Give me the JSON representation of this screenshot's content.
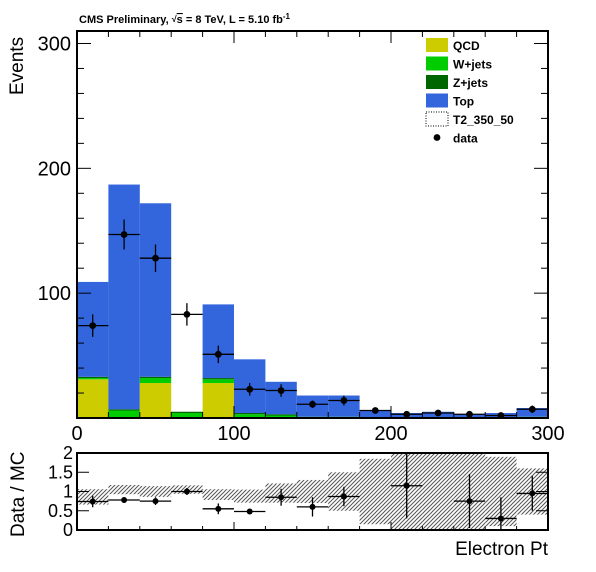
{
  "header": {
    "prefix": "CMS Preliminary, ",
    "sqrt_s": "s",
    "suffix": " = 8 TeV, L = 5.10 fb",
    "superscript": "-1"
  },
  "chart_data": [
    {
      "type": "bar",
      "stacked": true,
      "xlabel": "Electron Pt",
      "ylabel": "Events",
      "xlim": [
        0,
        300
      ],
      "ylim": [
        0,
        310
      ],
      "grid": false,
      "legend_position": "top-right",
      "x_tick_labels": [
        "0",
        "100",
        "200",
        "300"
      ],
      "y_tick_labels": [
        "100",
        "200",
        "300"
      ],
      "bin_edges": [
        0,
        20,
        40,
        60,
        80,
        100,
        120,
        140,
        160,
        180,
        200,
        220,
        240,
        260,
        280,
        300
      ],
      "series": [
        {
          "name": "QCD",
          "color": "#cccc00",
          "values": [
            31,
            0,
            28,
            0,
            28,
            0,
            0,
            0,
            0,
            0,
            0,
            0,
            0,
            0,
            0
          ]
        },
        {
          "name": "W+jets",
          "color": "#00cc00",
          "values": [
            1,
            6,
            4,
            4,
            3,
            3,
            2,
            1,
            1,
            0,
            0,
            0,
            0,
            0,
            1
          ]
        },
        {
          "name": "Z+jets",
          "color": "#006600",
          "values": [
            1,
            1,
            1,
            1,
            1,
            1,
            1,
            0,
            0,
            0,
            0,
            0,
            0,
            0,
            0
          ]
        },
        {
          "name": "Top",
          "color": "#3366dd",
          "values": [
            76,
            180,
            139,
            0,
            59,
            43,
            26,
            17,
            17,
            6,
            4,
            5,
            3,
            4,
            7
          ]
        },
        {
          "name": "T2_350_50",
          "color": "#000000",
          "style": "dotted-line",
          "values": []
        }
      ],
      "data_points": {
        "name": "data",
        "x": [
          10,
          30,
          50,
          70,
          90,
          110,
          130,
          150,
          170,
          190,
          210,
          230,
          250,
          270,
          290
        ],
        "y": [
          74,
          147,
          128,
          83,
          51,
          23,
          22,
          11,
          14,
          6,
          3,
          4,
          3,
          2,
          7
        ],
        "yerr": [
          9,
          12,
          11,
          9,
          7,
          5,
          5,
          3,
          4,
          2,
          2,
          2,
          2,
          1,
          3
        ]
      }
    },
    {
      "type": "scatter",
      "xlabel": "Electron Pt",
      "ylabel": "Data / MC",
      "xlim": [
        0,
        300
      ],
      "ylim": [
        0,
        2
      ],
      "y_tick_labels": [
        "0",
        "0.5",
        "1",
        "1.5",
        "2"
      ],
      "ratio": {
        "x": [
          10,
          30,
          50,
          70,
          90,
          110,
          130,
          150,
          170,
          190,
          210,
          230,
          250,
          270,
          290
        ],
        "y": [
          0.74,
          0.78,
          0.75,
          1.0,
          0.55,
          0.48,
          0.85,
          0.6,
          0.87,
          null,
          1.15,
          null,
          0.75,
          0.3,
          0.95
        ],
        "yerr": [
          0.15,
          0.06,
          0.1,
          0.09,
          0.14,
          0.05,
          0.22,
          0.25,
          0.25,
          null,
          0.85,
          null,
          0.7,
          0.55,
          0.45
        ]
      },
      "mc_uncertainty_band": {
        "center": [
          0.86,
          1.05,
          1.0,
          1.05,
          0.92,
          0.88,
          0.96,
          1.0,
          1.0,
          1.0,
          1.0,
          1.0,
          1.0,
          1.0,
          1.0
        ],
        "halfwidth": [
          0.2,
          0.12,
          0.14,
          0.11,
          0.14,
          0.17,
          0.25,
          0.3,
          0.5,
          0.85,
          1.0,
          1.0,
          1.0,
          0.9,
          0.6
        ]
      }
    }
  ]
}
